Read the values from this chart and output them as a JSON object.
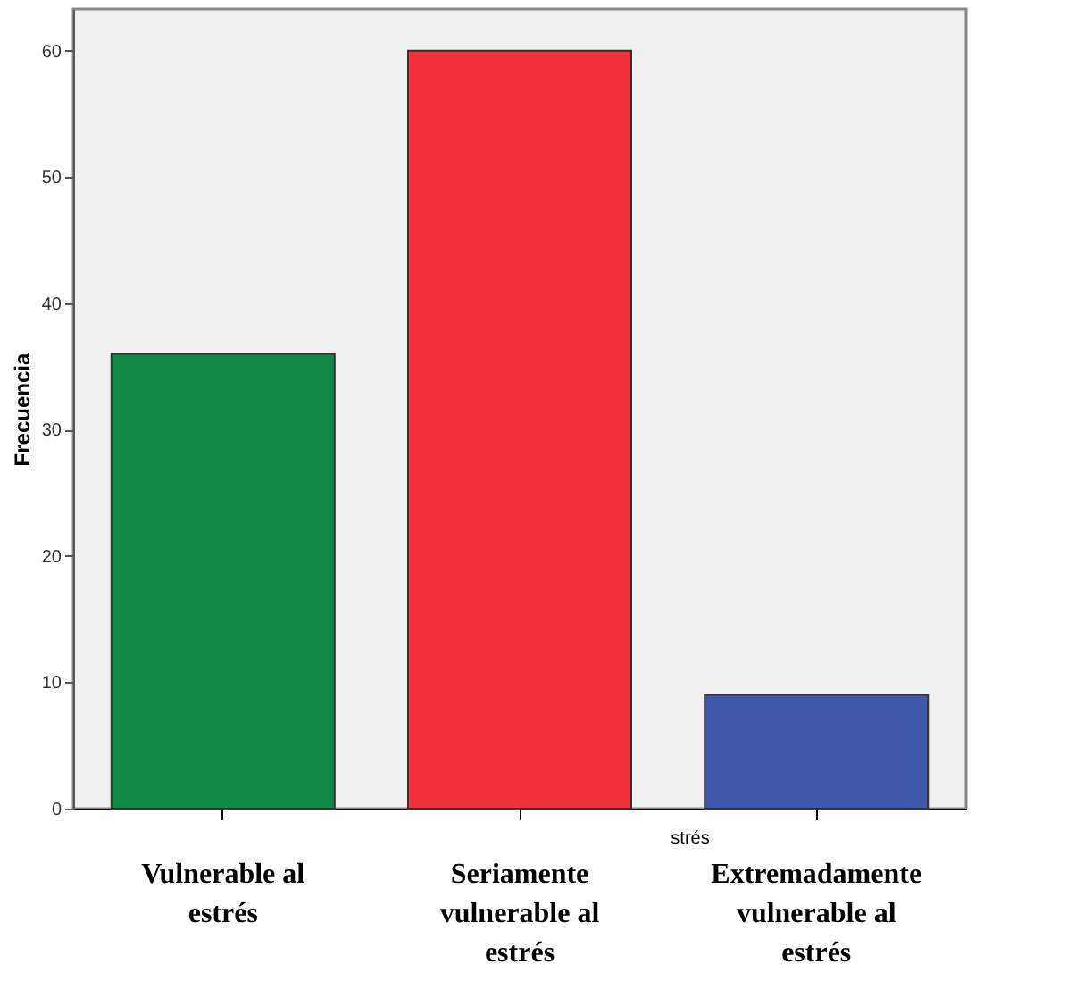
{
  "chart_data": {
    "type": "bar",
    "ylabel": "Frecuencia",
    "xlabel": "strés",
    "categories": [
      "Vulnerable al estrés",
      "Seriamente vulnerable al estrés",
      "Extremadamente vulnerable al estrés"
    ],
    "values": [
      36,
      60,
      9
    ],
    "colors": [
      "#118a48",
      "#f0323b",
      "#3e58aa"
    ],
    "ylim": [
      0,
      63.3
    ],
    "yticks": [
      0,
      10,
      20,
      30,
      40,
      50,
      60
    ],
    "grid": false
  }
}
